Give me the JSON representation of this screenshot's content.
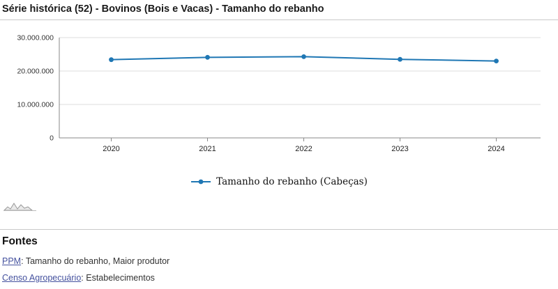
{
  "page": {
    "title": "Série histórica (52) - Bovinos (Bois e Vacas) - Tamanho do rebanho",
    "fontes": {
      "heading": "Fontes",
      "sources": [
        {
          "link_text": "PPM",
          "description": ": Tamanho do rebanho, Maior produtor"
        },
        {
          "link_text": "Censo Agropecuário",
          "description": ": Estabelecimentos"
        }
      ]
    },
    "colors": {
      "link": "#44519e"
    }
  },
  "chart_data": {
    "type": "line",
    "title": "",
    "x": [
      "2020",
      "2021",
      "2022",
      "2023",
      "2024"
    ],
    "series": [
      {
        "name": "Tamanho do rebanho (Cabeças)",
        "values": [
          23400000,
          24100000,
          24300000,
          23500000,
          23000000
        ]
      }
    ],
    "ylim": [
      0,
      30000000
    ],
    "yticks": [
      {
        "value": 0,
        "label": "0"
      },
      {
        "value": 10000000,
        "label": "10.000.000"
      },
      {
        "value": 20000000,
        "label": "20.000.000"
      },
      {
        "value": 30000000,
        "label": "30.000.000"
      }
    ],
    "xlabel": "",
    "ylabel": "",
    "grid": true,
    "legend_position": "bottom-center",
    "colors": {
      "line": "#1f77b4",
      "marker": "#1f77b4",
      "grid": "#dddddd",
      "axis": "#888888"
    }
  }
}
